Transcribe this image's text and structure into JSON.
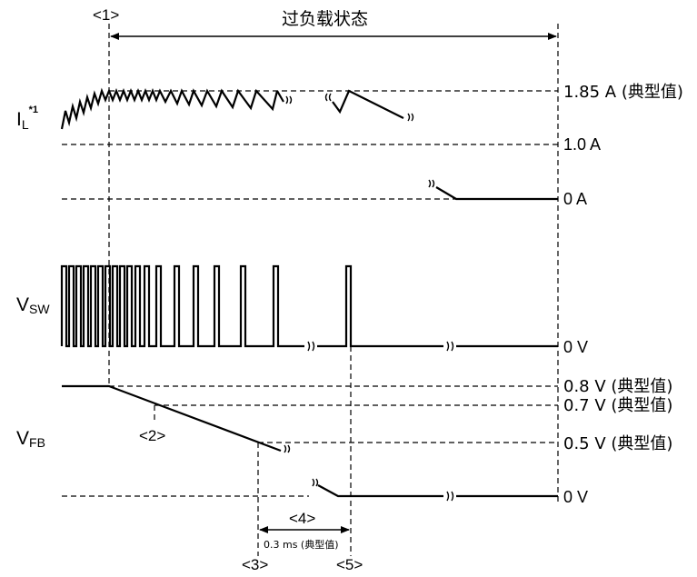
{
  "header": {
    "marker_1": "<1>",
    "overload_state": "过负载状态"
  },
  "signals": {
    "il_label_main": "I",
    "il_label_sub": "L",
    "il_label_sup": "*1",
    "vsw_label_main": "V",
    "vsw_label_sub": "SW",
    "vfb_label_main": "V",
    "vfb_label_sub": "FB"
  },
  "levels": {
    "il_peak": "1.85 A (典型值)",
    "il_mid": "1.0 A",
    "il_zero": "0 A",
    "vsw_zero": "0 V",
    "vfb_08": "0.8 V (典型值)",
    "vfb_07": "0.7 V (典型值)",
    "vfb_05": "0.5 V (典型值)",
    "vfb_zero": "0 V"
  },
  "markers": {
    "m2": "<2>",
    "m3": "<3>",
    "m4": "<4>",
    "m5": "<5>",
    "duration": "0.3 ms (典型值)"
  }
}
